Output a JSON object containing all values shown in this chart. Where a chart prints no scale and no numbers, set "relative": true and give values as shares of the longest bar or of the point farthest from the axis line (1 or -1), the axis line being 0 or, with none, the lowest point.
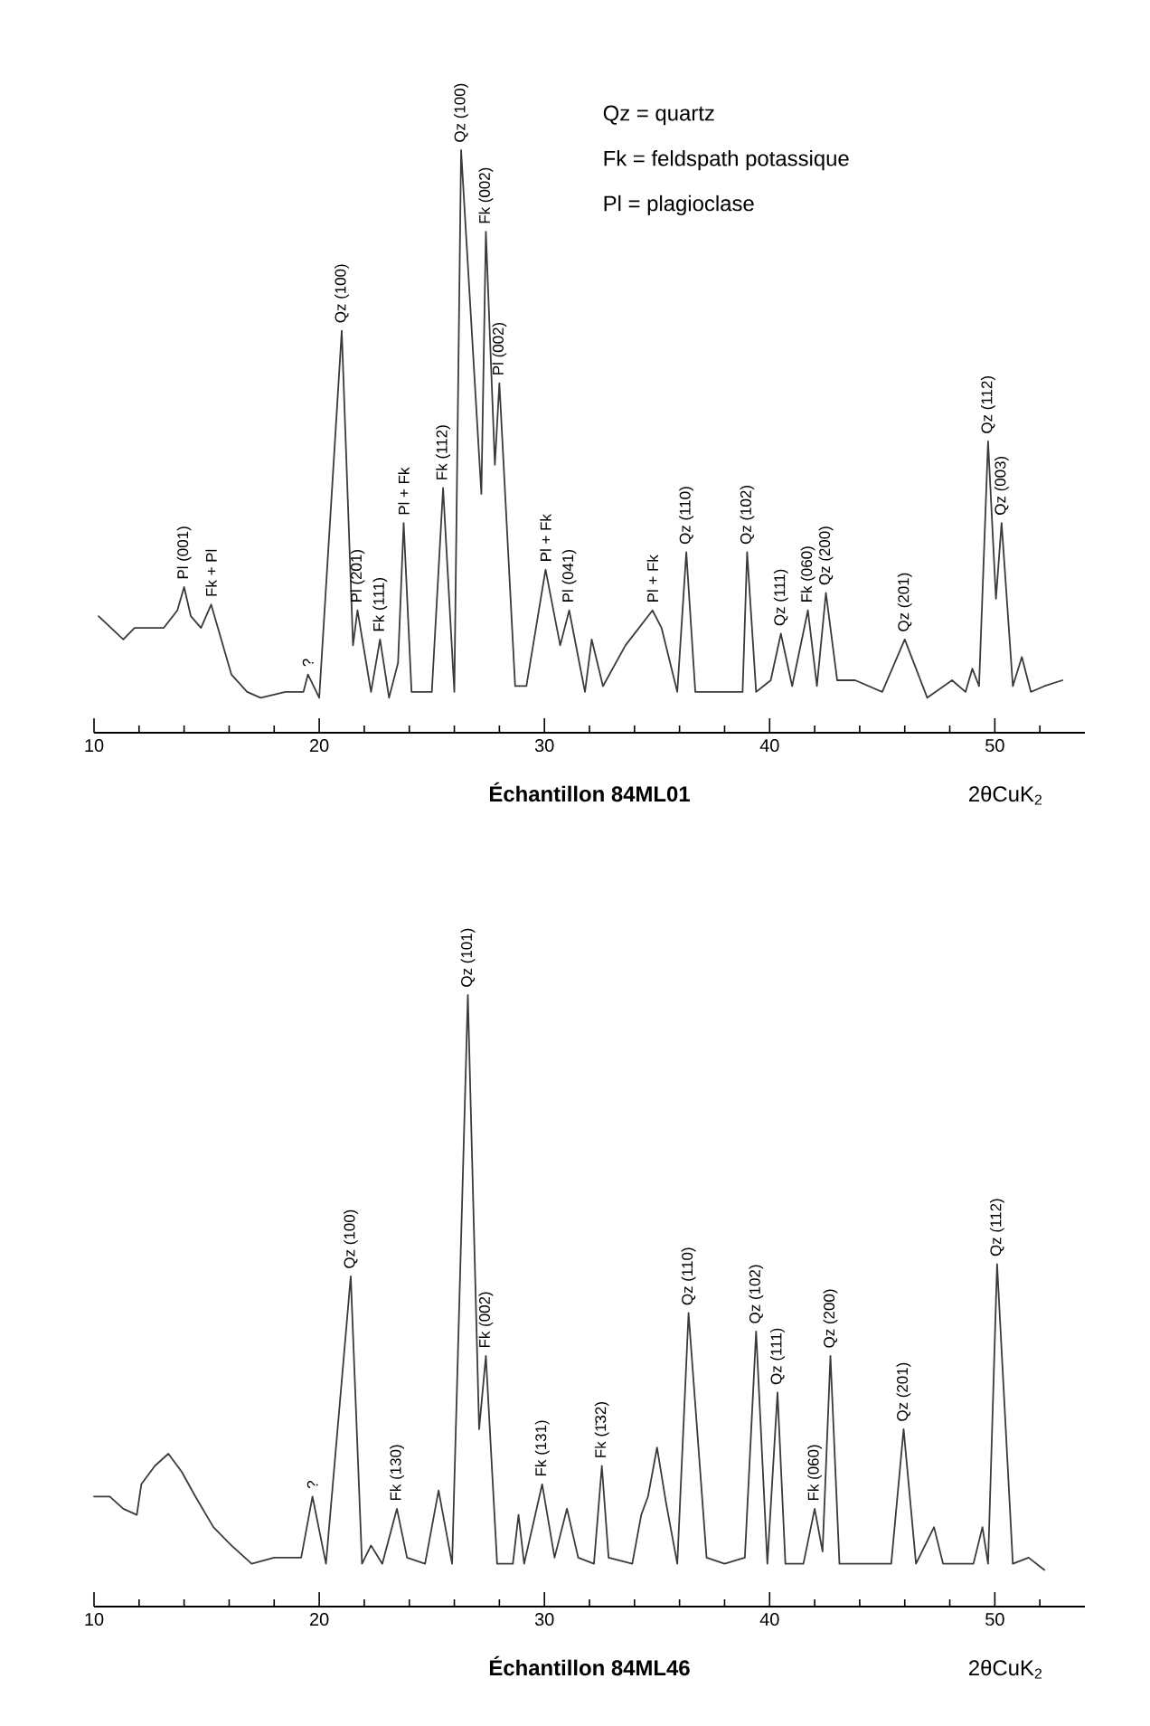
{
  "chart_data": [
    {
      "type": "line",
      "relative": true,
      "title": "Échantillon 84ML01",
      "xlabel": "2θCuK$_{2}$",
      "xlim": [
        10,
        54
      ],
      "xticks": [
        10,
        {
          "value": 12,
          "label": null
        },
        {
          "value": 14,
          "label": null
        },
        {
          "value": 16,
          "label": null
        },
        {
          "value": 18,
          "label": null
        },
        20,
        {
          "value": 22,
          "label": null
        },
        {
          "value": 24,
          "label": null
        },
        {
          "value": 26,
          "label": null
        },
        {
          "value": 28,
          "label": null
        },
        30,
        {
          "value": 32,
          "label": null
        },
        {
          "value": 34,
          "label": null
        },
        {
          "value": 36,
          "label": null
        },
        {
          "value": 38,
          "label": null
        },
        40,
        {
          "value": 42,
          "label": null
        },
        {
          "value": 44,
          "label": null
        },
        {
          "value": 46,
          "label": null
        },
        {
          "value": 48,
          "label": null
        },
        50,
        {
          "value": 52,
          "label": null
        }
      ],
      "color": "#3a3a3a",
      "x": [
        10.2,
        11.3,
        11.8,
        13.1,
        13.7,
        14.0,
        14.3,
        14.75,
        15.2,
        16.1,
        16.8,
        17.4,
        18.5,
        19.3,
        19.5,
        20.0,
        21.0,
        21.5,
        21.7,
        22.3,
        22.7,
        23.1,
        23.5,
        23.75,
        24.1,
        25.0,
        25.5,
        26.0,
        26.3,
        27.2,
        27.4,
        27.8,
        28.0,
        28.7,
        29.2,
        30.05,
        30.7,
        31.1,
        31.8,
        32.1,
        32.6,
        33.6,
        34.8,
        35.2,
        35.9,
        36.3,
        36.7,
        37.9,
        38.8,
        39.0,
        39.4,
        40.05,
        40.5,
        41.0,
        41.7,
        42.1,
        42.5,
        43.0,
        43.8,
        45.0,
        46.0,
        47.0,
        48.1,
        48.7,
        49.0,
        49.3,
        49.7,
        50.05,
        50.3,
        50.8,
        51.2,
        51.6,
        52.2,
        53.0
      ],
      "values": [
        0.2,
        0.16,
        0.18,
        0.18,
        0.21,
        0.25,
        0.2,
        0.18,
        0.22,
        0.1,
        0.07,
        0.06,
        0.07,
        0.07,
        0.1,
        0.06,
        0.69,
        0.15,
        0.21,
        0.07,
        0.16,
        0.06,
        0.12,
        0.36,
        0.07,
        0.07,
        0.42,
        0.07,
        1.0,
        0.41,
        0.86,
        0.46,
        0.6,
        0.08,
        0.08,
        0.28,
        0.15,
        0.21,
        0.07,
        0.16,
        0.08,
        0.15,
        0.21,
        0.18,
        0.07,
        0.31,
        0.07,
        0.07,
        0.07,
        0.31,
        0.07,
        0.09,
        0.17,
        0.08,
        0.21,
        0.08,
        0.24,
        0.09,
        0.09,
        0.07,
        0.16,
        0.06,
        0.09,
        0.07,
        0.11,
        0.08,
        0.5,
        0.23,
        0.36,
        0.08,
        0.13,
        0.07,
        0.08,
        0.09
      ],
      "annotations": [
        "Qz = quartz",
        "Fk = feldspath potassique",
        "Pl = plagioclase",
        {
          "text": "Pl (001)",
          "x": 14.0,
          "y": 0.25
        },
        {
          "text": "Fk + Pl",
          "x": 15.2,
          "y": 0.22
        },
        {
          "text": "?",
          "x": 19.5,
          "y": 0.1
        },
        {
          "text": "Qz (100)",
          "x": 21.0,
          "y": 0.69
        },
        {
          "text": "Pl (201)",
          "x": 21.7,
          "y": 0.21
        },
        {
          "text": "Fk (111)",
          "x": 22.7,
          "y": 0.16
        },
        {
          "text": "Pl + Fk",
          "x": 23.75,
          "y": 0.36
        },
        {
          "text": "Fk (112)",
          "x": 25.5,
          "y": 0.42
        },
        {
          "text": "Qz (100)",
          "x": 26.3,
          "y": 1.0
        },
        {
          "text": "Fk (002)",
          "x": 27.4,
          "y": 0.86
        },
        {
          "text": "Pl (002)",
          "x": 28.0,
          "y": 0.6
        },
        {
          "text": "Pl + Fk",
          "x": 30.05,
          "y": 0.28
        },
        {
          "text": "Pl (041)",
          "x": 31.1,
          "y": 0.21
        },
        {
          "text": "Pl + Fk",
          "x": 34.8,
          "y": 0.21
        },
        {
          "text": "Qz (110)",
          "x": 36.3,
          "y": 0.31
        },
        {
          "text": "Qz (102)",
          "x": 39.0,
          "y": 0.31
        },
        {
          "text": "Qz (111)",
          "x": 40.5,
          "y": 0.17
        },
        {
          "text": "Fk (060)",
          "x": 41.7,
          "y": 0.21
        },
        {
          "text": "Qz (200)",
          "x": 42.5,
          "y": 0.24
        },
        {
          "text": "Qz (201)",
          "x": 46.0,
          "y": 0.16
        },
        {
          "text": "Qz (112)",
          "x": 49.7,
          "y": 0.5
        },
        {
          "text": "Qz (003)",
          "x": 50.3,
          "y": 0.36
        }
      ]
    },
    {
      "type": "line",
      "relative": true,
      "title": "Échantillon 84ML46",
      "xlabel": "2θCuK$_{2}$",
      "xlim": [
        10,
        54
      ],
      "xticks": [
        10,
        {
          "value": 12,
          "label": null
        },
        {
          "value": 14,
          "label": null
        },
        {
          "value": 16,
          "label": null
        },
        {
          "value": 18,
          "label": null
        },
        20,
        {
          "value": 22,
          "label": null
        },
        {
          "value": 24,
          "label": null
        },
        {
          "value": 26,
          "label": null
        },
        {
          "value": 28,
          "label": null
        },
        30,
        {
          "value": 32,
          "label": null
        },
        {
          "value": 34,
          "label": null
        },
        {
          "value": 36,
          "label": null
        },
        {
          "value": 38,
          "label": null
        },
        40,
        {
          "value": 42,
          "label": null
        },
        {
          "value": 44,
          "label": null
        },
        {
          "value": 46,
          "label": null
        },
        {
          "value": 48,
          "label": null
        },
        50,
        {
          "value": 52,
          "label": null
        }
      ],
      "color": "#3a3a3a",
      "x": [
        10.0,
        10.7,
        11.3,
        11.9,
        12.1,
        12.7,
        13.3,
        13.9,
        14.5,
        15.3,
        16.1,
        17.0,
        18.0,
        19.2,
        19.7,
        20.3,
        21.4,
        21.9,
        22.3,
        22.8,
        23.45,
        23.9,
        24.7,
        25.3,
        25.9,
        26.6,
        27.1,
        27.4,
        27.9,
        28.6,
        28.85,
        29.1,
        29.9,
        30.45,
        31.0,
        31.5,
        32.2,
        32.55,
        32.85,
        33.9,
        34.3,
        34.6,
        35.0,
        35.4,
        35.9,
        36.4,
        37.2,
        38.0,
        38.9,
        39.4,
        39.9,
        40.35,
        40.7,
        41.5,
        42.0,
        42.35,
        42.7,
        43.1,
        44.2,
        45.4,
        45.95,
        46.5,
        47.3,
        47.7,
        49.05,
        49.45,
        49.7,
        50.1,
        50.8,
        51.5,
        52.2
      ],
      "values": [
        0.18,
        0.18,
        0.16,
        0.15,
        0.2,
        0.23,
        0.25,
        0.22,
        0.18,
        0.13,
        0.1,
        0.07,
        0.08,
        0.08,
        0.18,
        0.07,
        0.54,
        0.07,
        0.1,
        0.07,
        0.16,
        0.08,
        0.07,
        0.19,
        0.07,
        1.0,
        0.29,
        0.41,
        0.07,
        0.07,
        0.15,
        0.07,
        0.2,
        0.08,
        0.16,
        0.08,
        0.07,
        0.23,
        0.08,
        0.07,
        0.15,
        0.18,
        0.26,
        0.17,
        0.07,
        0.48,
        0.08,
        0.07,
        0.08,
        0.45,
        0.07,
        0.35,
        0.07,
        0.07,
        0.16,
        0.09,
        0.41,
        0.07,
        0.07,
        0.07,
        0.29,
        0.07,
        0.13,
        0.07,
        0.07,
        0.13,
        0.07,
        0.56,
        0.07,
        0.08,
        0.06
      ],
      "annotations": [
        {
          "text": "?",
          "x": 19.7,
          "y": 0.18
        },
        {
          "text": "Qz (100)",
          "x": 21.4,
          "y": 0.54
        },
        {
          "text": "Fk (130)",
          "x": 23.45,
          "y": 0.16
        },
        {
          "text": "Qz (101)",
          "x": 26.6,
          "y": 1.0
        },
        {
          "text": "Fk (002)",
          "x": 27.4,
          "y": 0.41
        },
        {
          "text": "Fk (131)",
          "x": 29.9,
          "y": 0.2
        },
        {
          "text": "Fk (1̄32)",
          "x": 32.55,
          "y": 0.23
        },
        {
          "text": "Qz (110)",
          "x": 36.4,
          "y": 0.48
        },
        {
          "text": "Qz (102)",
          "x": 39.4,
          "y": 0.45
        },
        {
          "text": "Qz (111)",
          "x": 40.35,
          "y": 0.35
        },
        {
          "text": "Fk (060)",
          "x": 42.0,
          "y": 0.16
        },
        {
          "text": "Qz (200)",
          "x": 42.7,
          "y": 0.41
        },
        {
          "text": "Qz (201)",
          "x": 45.95,
          "y": 0.29
        },
        {
          "text": "Qz (112)",
          "x": 50.1,
          "y": 0.56
        }
      ]
    }
  ]
}
